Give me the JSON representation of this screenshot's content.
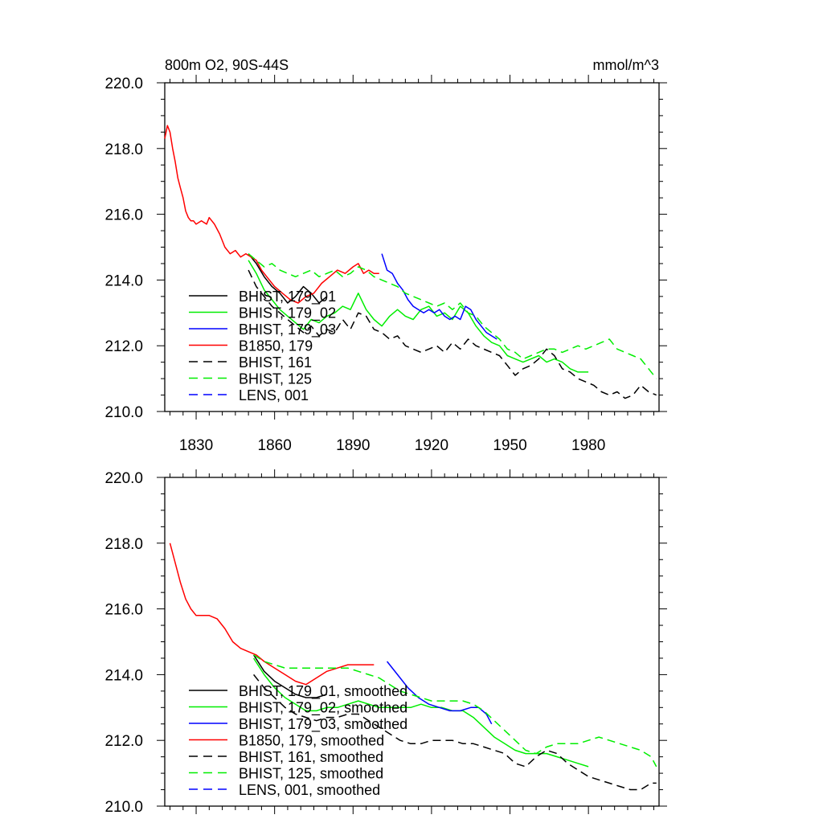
{
  "chart_data": [
    {
      "type": "line",
      "title": "800m O2, 90S-44S",
      "units": "mmol/m^3",
      "xlim": [
        1818,
        2007
      ],
      "ylim": [
        210,
        220
      ],
      "xticks": [
        1830,
        1860,
        1890,
        1920,
        1950,
        1980
      ],
      "xtick_labels": [
        "1830",
        "1860",
        "1890",
        "1920",
        "1950",
        "1980"
      ],
      "yticks": [
        210,
        212,
        214,
        216,
        218,
        220
      ],
      "ytick_labels": [
        "210.0",
        "212.0",
        "214.0",
        "216.0",
        "218.0",
        "220.0"
      ],
      "legend_position": "bottom-left",
      "series": [
        {
          "name": "BHIST, 179_01",
          "color": "#000000",
          "dash": "solid",
          "x": [
            1850,
            1853,
            1856,
            1859,
            1862,
            1865,
            1868,
            1871,
            1874,
            1877,
            1880
          ],
          "y": [
            214.8,
            214.5,
            214.1,
            213.8,
            213.6,
            213.3,
            213.5,
            213.8,
            213.6,
            213.3,
            213.5
          ]
        },
        {
          "name": "BHIST, 179_02",
          "color": "#00ee00",
          "dash": "solid",
          "x": [
            1850,
            1853,
            1856,
            1859,
            1862,
            1865,
            1868,
            1871,
            1874,
            1877,
            1880,
            1883,
            1886,
            1889,
            1892,
            1895,
            1898,
            1901,
            1904,
            1907,
            1910,
            1913,
            1916,
            1919,
            1922,
            1925,
            1928,
            1931,
            1934,
            1937,
            1940,
            1943,
            1946,
            1949,
            1952,
            1955,
            1958,
            1961,
            1964,
            1967,
            1970,
            1973,
            1976,
            1979,
            1980
          ],
          "y": [
            214.6,
            214.2,
            213.7,
            213.4,
            213.1,
            212.9,
            212.7,
            212.5,
            212.8,
            212.7,
            212.9,
            213.0,
            213.2,
            213.1,
            213.6,
            213.1,
            212.8,
            212.6,
            212.9,
            213.1,
            212.9,
            212.8,
            213.1,
            213.2,
            212.9,
            213.0,
            212.8,
            213.2,
            213.0,
            212.6,
            212.3,
            212.1,
            212.0,
            211.7,
            211.6,
            211.5,
            211.6,
            211.7,
            211.5,
            211.6,
            211.5,
            211.3,
            211.2,
            211.2,
            211.2
          ]
        },
        {
          "name": "BHIST, 179_03",
          "color": "#0000ff",
          "dash": "solid",
          "x": [
            1901,
            1903,
            1905,
            1907,
            1909,
            1911,
            1913,
            1915,
            1917,
            1919,
            1921,
            1923,
            1925,
            1927,
            1929,
            1931,
            1933,
            1935,
            1937,
            1939,
            1941,
            1943,
            1945
          ],
          "y": [
            214.8,
            214.3,
            214.2,
            213.9,
            213.7,
            213.4,
            213.2,
            213.1,
            213.0,
            213.1,
            213.0,
            213.1,
            212.9,
            212.8,
            212.9,
            212.8,
            213.2,
            213.1,
            212.8,
            212.6,
            212.4,
            212.3,
            212.2
          ]
        },
        {
          "name": "B1850, 179",
          "color": "#ff0000",
          "dash": "solid",
          "x": [
            1818,
            1819,
            1820,
            1821,
            1822,
            1823,
            1824,
            1825,
            1826,
            1827,
            1828,
            1829,
            1830,
            1832,
            1834,
            1835,
            1837,
            1839,
            1841,
            1843,
            1845,
            1847,
            1849,
            1851,
            1853,
            1855,
            1857,
            1860,
            1863,
            1866,
            1869,
            1872,
            1875,
            1878,
            1881,
            1884,
            1887,
            1890,
            1892,
            1894,
            1896,
            1898,
            1900
          ],
          "y": [
            218.3,
            218.7,
            218.5,
            218.0,
            217.6,
            217.1,
            216.8,
            216.5,
            216.1,
            215.9,
            215.8,
            215.8,
            215.7,
            215.8,
            215.7,
            215.9,
            215.7,
            215.4,
            215.0,
            214.8,
            214.9,
            214.7,
            214.8,
            214.7,
            214.6,
            214.3,
            214.1,
            213.8,
            213.6,
            213.4,
            213.3,
            213.5,
            213.6,
            213.9,
            214.1,
            214.3,
            214.2,
            214.4,
            214.5,
            214.2,
            214.3,
            214.2,
            214.2
          ]
        },
        {
          "name": "BHIST, 161",
          "color": "#000000",
          "dash": "dashed",
          "x": [
            1850,
            1853,
            1856,
            1859,
            1862,
            1865,
            1868,
            1871,
            1874,
            1877,
            1880,
            1883,
            1886,
            1889,
            1892,
            1895,
            1898,
            1901,
            1904,
            1907,
            1910,
            1913,
            1916,
            1919,
            1922,
            1925,
            1928,
            1931,
            1934,
            1937,
            1940,
            1943,
            1946,
            1949,
            1952,
            1955,
            1958,
            1961,
            1964,
            1967,
            1970,
            1973,
            1976,
            1979,
            1982,
            1985,
            1988,
            1991,
            1994,
            1997,
            2000,
            2003,
            2006
          ],
          "y": [
            214.3,
            213.8,
            213.5,
            213.2,
            213.0,
            212.8,
            212.6,
            212.4,
            212.6,
            212.3,
            212.5,
            212.4,
            212.8,
            212.5,
            213.0,
            212.9,
            212.5,
            212.4,
            212.2,
            212.3,
            212.0,
            211.9,
            211.8,
            211.9,
            212.0,
            211.8,
            212.1,
            211.9,
            212.2,
            212.0,
            211.9,
            211.8,
            211.7,
            211.4,
            211.1,
            211.3,
            211.4,
            211.6,
            211.9,
            211.7,
            211.3,
            211.2,
            211.0,
            210.9,
            210.8,
            210.6,
            210.5,
            210.6,
            210.4,
            210.5,
            210.8,
            210.6,
            210.5
          ]
        },
        {
          "name": "BHIST, 125",
          "color": "#00ee00",
          "dash": "dashed",
          "x": [
            1850,
            1853,
            1856,
            1859,
            1862,
            1865,
            1868,
            1871,
            1874,
            1877,
            1880,
            1883,
            1886,
            1889,
            1892,
            1895,
            1898,
            1901,
            1904,
            1907,
            1910,
            1913,
            1916,
            1919,
            1922,
            1925,
            1928,
            1931,
            1934,
            1937,
            1940,
            1943,
            1946,
            1949,
            1952,
            1955,
            1958,
            1961,
            1964,
            1967,
            1970,
            1973,
            1976,
            1979,
            1982,
            1985,
            1988,
            1991,
            1994,
            1997,
            2000,
            2003,
            2006
          ],
          "y": [
            214.8,
            214.6,
            214.4,
            214.5,
            214.3,
            214.2,
            214.1,
            214.2,
            214.3,
            214.1,
            214.2,
            214.3,
            214.1,
            214.2,
            214.4,
            214.3,
            214.1,
            214.0,
            213.9,
            213.8,
            213.6,
            213.5,
            213.4,
            213.3,
            213.2,
            213.3,
            213.1,
            213.3,
            213.0,
            212.9,
            212.6,
            212.4,
            212.2,
            211.9,
            211.8,
            211.6,
            211.7,
            211.8,
            211.9,
            211.9,
            211.8,
            211.9,
            212.0,
            211.9,
            212.0,
            212.1,
            212.2,
            211.9,
            211.8,
            211.7,
            211.6,
            211.3,
            211.0
          ]
        },
        {
          "name": "LENS, 001",
          "color": "#0000ff",
          "dash": "dashed",
          "x": [],
          "y": []
        }
      ]
    },
    {
      "type": "line",
      "title": "",
      "units": "",
      "xlim": [
        1818,
        2007
      ],
      "ylim": [
        210,
        220
      ],
      "xticks": [
        1830,
        1860,
        1890,
        1920,
        1950,
        1980
      ],
      "xtick_labels": [],
      "yticks": [
        210,
        212,
        214,
        216,
        218,
        220
      ],
      "ytick_labels": [
        "210.0",
        "212.0",
        "214.0",
        "216.0",
        "218.0",
        "220.0"
      ],
      "legend_position": "bottom-left",
      "series": [
        {
          "name": "BHIST, 179_01, smoothed",
          "color": "#000000",
          "dash": "solid",
          "x": [
            1852,
            1856,
            1860,
            1864,
            1868,
            1872,
            1876,
            1880
          ],
          "y": [
            214.6,
            214.1,
            213.8,
            213.6,
            213.4,
            213.3,
            213.3,
            213.4
          ]
        },
        {
          "name": "BHIST, 179_02, smoothed",
          "color": "#00ee00",
          "dash": "solid",
          "x": [
            1852,
            1856,
            1860,
            1864,
            1868,
            1872,
            1876,
            1880,
            1884,
            1888,
            1892,
            1896,
            1900,
            1904,
            1908,
            1912,
            1916,
            1920,
            1924,
            1928,
            1932,
            1936,
            1940,
            1944,
            1948,
            1952,
            1956,
            1960,
            1964,
            1968,
            1972,
            1976,
            1980
          ],
          "y": [
            214.5,
            214.0,
            213.6,
            213.3,
            213.1,
            212.9,
            212.9,
            213.0,
            213.0,
            213.1,
            213.2,
            213.1,
            213.0,
            213.0,
            213.0,
            213.0,
            213.1,
            213.0,
            213.0,
            212.9,
            212.9,
            212.7,
            212.4,
            212.1,
            211.9,
            211.7,
            211.6,
            211.6,
            211.6,
            211.5,
            211.4,
            211.3,
            211.2
          ]
        },
        {
          "name": "BHIST, 179_03, smoothed",
          "color": "#0000ff",
          "dash": "solid",
          "x": [
            1903,
            1907,
            1911,
            1915,
            1919,
            1923,
            1927,
            1931,
            1935,
            1938,
            1941,
            1943
          ],
          "y": [
            214.4,
            214.0,
            213.6,
            213.3,
            213.1,
            213.0,
            212.9,
            212.9,
            213.0,
            213.0,
            212.8,
            212.5
          ]
        },
        {
          "name": "B1850, 179, smoothed",
          "color": "#ff0000",
          "dash": "solid",
          "x": [
            1820,
            1822,
            1824,
            1826,
            1828,
            1830,
            1832,
            1835,
            1838,
            1841,
            1844,
            1847,
            1850,
            1853,
            1856,
            1860,
            1864,
            1868,
            1872,
            1876,
            1880,
            1884,
            1888,
            1892,
            1896,
            1898
          ],
          "y": [
            218.0,
            217.4,
            216.8,
            216.3,
            216.0,
            215.8,
            215.8,
            215.8,
            215.7,
            215.4,
            215.0,
            214.8,
            214.7,
            214.6,
            214.4,
            214.2,
            214.0,
            213.8,
            213.7,
            213.9,
            214.1,
            214.2,
            214.3,
            214.3,
            214.3,
            214.3
          ]
        },
        {
          "name": "BHIST, 161, smoothed",
          "color": "#000000",
          "dash": "dashed",
          "x": [
            1852,
            1856,
            1860,
            1864,
            1868,
            1872,
            1876,
            1880,
            1884,
            1888,
            1892,
            1896,
            1900,
            1904,
            1908,
            1912,
            1916,
            1920,
            1924,
            1928,
            1932,
            1936,
            1940,
            1944,
            1948,
            1952,
            1956,
            1960,
            1964,
            1968,
            1972,
            1976,
            1980,
            1984,
            1988,
            1992,
            1996,
            2000,
            2004,
            2006
          ],
          "y": [
            214.0,
            213.6,
            213.3,
            213.0,
            212.8,
            212.7,
            212.6,
            212.7,
            212.7,
            212.8,
            212.8,
            212.6,
            212.4,
            212.2,
            212.0,
            211.9,
            211.9,
            212.0,
            212.0,
            212.0,
            211.9,
            211.9,
            211.8,
            211.7,
            211.6,
            211.3,
            211.2,
            211.5,
            211.7,
            211.6,
            211.3,
            211.1,
            210.9,
            210.8,
            210.7,
            210.6,
            210.5,
            210.5,
            210.7,
            210.7
          ]
        },
        {
          "name": "BHIST, 125, smoothed",
          "color": "#00ee00",
          "dash": "dashed",
          "x": [
            1852,
            1856,
            1860,
            1864,
            1868,
            1872,
            1876,
            1880,
            1884,
            1888,
            1892,
            1896,
            1900,
            1904,
            1908,
            1912,
            1916,
            1920,
            1924,
            1928,
            1932,
            1936,
            1940,
            1944,
            1948,
            1952,
            1956,
            1960,
            1964,
            1968,
            1972,
            1976,
            1980,
            1984,
            1988,
            1992,
            1996,
            2000,
            2004,
            2006
          ],
          "y": [
            214.6,
            214.4,
            214.3,
            214.2,
            214.2,
            214.2,
            214.2,
            214.2,
            214.2,
            214.2,
            214.1,
            214.0,
            213.9,
            213.7,
            213.5,
            213.4,
            213.3,
            213.2,
            213.2,
            213.2,
            213.2,
            213.1,
            212.9,
            212.6,
            212.3,
            212.0,
            211.7,
            211.6,
            211.8,
            211.9,
            211.9,
            211.9,
            212.0,
            212.1,
            212.0,
            211.9,
            211.8,
            211.7,
            211.5,
            211.2
          ]
        },
        {
          "name": "LENS, 001, smoothed",
          "color": "#0000ff",
          "dash": "dashed",
          "x": [],
          "y": []
        }
      ]
    }
  ]
}
